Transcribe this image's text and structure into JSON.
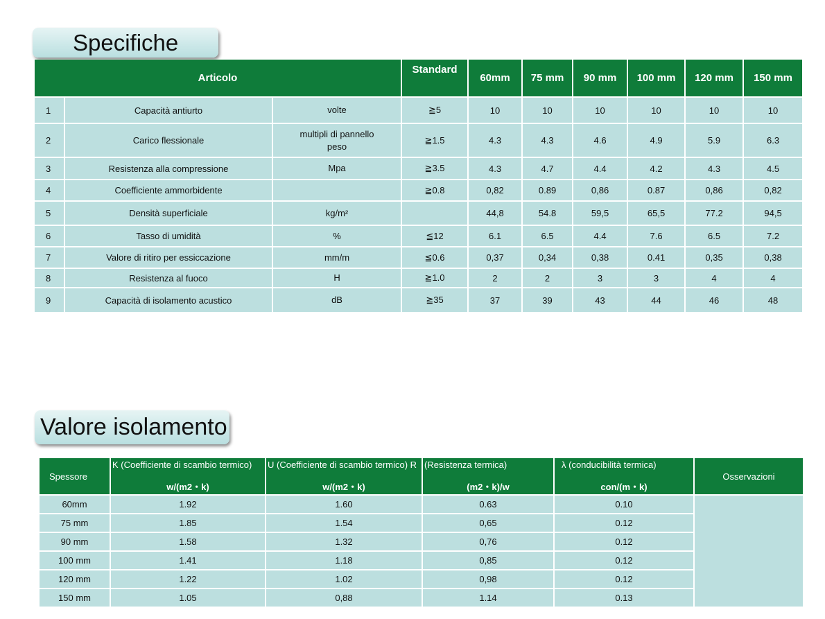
{
  "spec": {
    "title": "Specifiche",
    "headers": {
      "articolo": "Articolo",
      "standard": "Standard",
      "thicknesses": [
        "60mm",
        "75 mm",
        "90 mm",
        "100 mm",
        "120 mm",
        "150 mm"
      ]
    },
    "rows": [
      {
        "n": "1",
        "name": "Capacità antiurto",
        "unit": "volte",
        "std": "≧5",
        "vals": [
          "10",
          "10",
          "10",
          "10",
          "10",
          "10"
        ]
      },
      {
        "n": "2",
        "name": "Carico flessionale",
        "unit": "multipli di pannello peso",
        "std": "≧1.5",
        "vals": [
          "4.3",
          "4.3",
          "4.6",
          "4.9",
          "5.9",
          "6.3"
        ]
      },
      {
        "n": "3",
        "name": "Resistenza alla compressione",
        "unit": "Mpa",
        "std": "≧3.5",
        "vals": [
          "4.3",
          "4.7",
          "4.4",
          "4.2",
          "4.3",
          "4.5"
        ]
      },
      {
        "n": "4",
        "name": "Coefficiente ammorbidente",
        "unit": "",
        "std": "≧0.8",
        "vals": [
          "0,82",
          "0.89",
          "0,86",
          "0.87",
          "0,86",
          "0,82"
        ]
      },
      {
        "n": "5",
        "name": "Densità superficiale",
        "unit": "kg/m²",
        "std": "",
        "vals": [
          "44,8",
          "54.8",
          "59,5",
          "65,5",
          "77.2",
          "94,5"
        ]
      },
      {
        "n": "6",
        "name": "Tasso di umidità",
        "unit": "%",
        "std": "≦12",
        "vals": [
          "6.1",
          "6.5",
          "4.4",
          "7.6",
          "6.5",
          "7.2"
        ]
      },
      {
        "n": "7",
        "name": "Valore di ritiro per essiccazione",
        "unit": "mm/m",
        "std": "≦0.6",
        "vals": [
          "0,37",
          "0,34",
          "0,38",
          "0.41",
          "0,35",
          "0,38"
        ]
      },
      {
        "n": "8",
        "name": "Resistenza al fuoco",
        "unit": "H",
        "std": "≧1.0",
        "vals": [
          "2",
          "2",
          "3",
          "3",
          "4",
          "4"
        ]
      },
      {
        "n": "9",
        "name": "Capacità di isolamento acustico",
        "unit": "dB",
        "std": "≧35",
        "vals": [
          "37",
          "39",
          "43",
          "44",
          "46",
          "48"
        ]
      }
    ]
  },
  "insulation": {
    "title": "Valore isolamento",
    "headers": {
      "spessore": "Spessore",
      "k_label": "K (Coefficiente di scambio termico)",
      "k_unit": "w/(m2・k)",
      "u_label": "U (Coefficiente di scambio termico) R",
      "u_unit": "w/(m2・k)",
      "r_label": "(Resistenza termica)",
      "r_unit": "(m2・k)/w",
      "l_label": "λ (conducibilità termica)",
      "l_unit": "con/(m・k)",
      "obs": "Osservazioni"
    },
    "rows": [
      {
        "t": "60mm",
        "k": "1.92",
        "u": "1.60",
        "r": "0.63",
        "l": "0.10"
      },
      {
        "t": "75 mm",
        "k": "1.85",
        "u": "1.54",
        "r": "0,65",
        "l": "0.12"
      },
      {
        "t": "90 mm",
        "k": "1.58",
        "u": "1.32",
        "r": "0,76",
        "l": "0.12"
      },
      {
        "t": "100 mm",
        "k": "1.41",
        "u": "1.18",
        "r": "0,85",
        "l": "0.12"
      },
      {
        "t": "120 mm",
        "k": "1.22",
        "u": "1.02",
        "r": "0,98",
        "l": "0.12"
      },
      {
        "t": "150 mm",
        "k": "1.05",
        "u": "0,88",
        "r": "1.14",
        "l": "0.13"
      }
    ]
  },
  "colors": {
    "header_green": "#0f7c3a",
    "cell_teal": "#bcdfdf"
  }
}
